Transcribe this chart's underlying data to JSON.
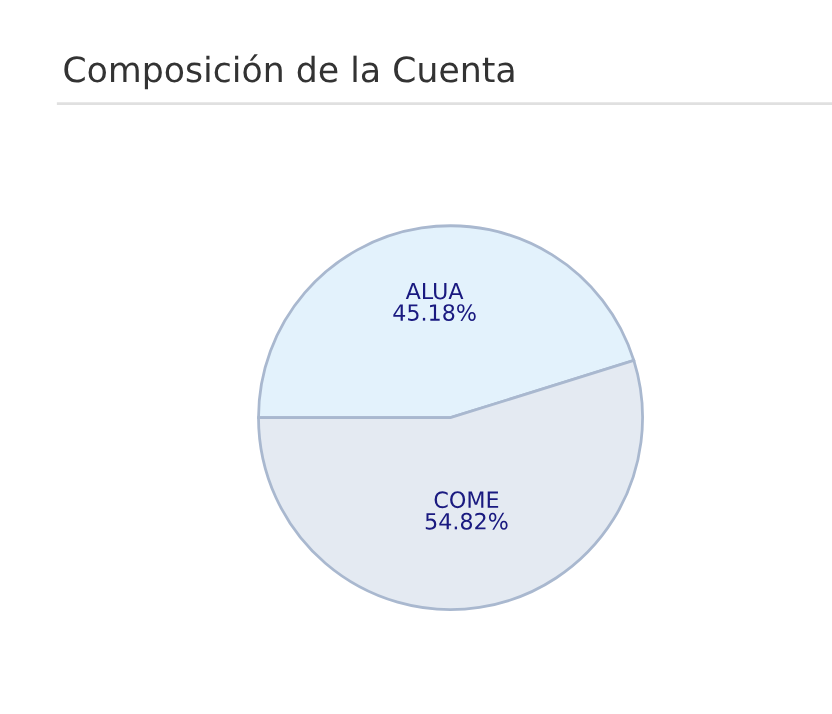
{
  "chart_data": {
    "type": "pie",
    "title": "Composición de la Cuenta",
    "categories": [
      "ALUA",
      "COME"
    ],
    "values": [
      45.18,
      54.82
    ],
    "colors": [
      "#e3f2fc",
      "#e4eaf2"
    ],
    "value_labels": [
      "45.18%",
      "54.82%"
    ],
    "legend": false
  }
}
